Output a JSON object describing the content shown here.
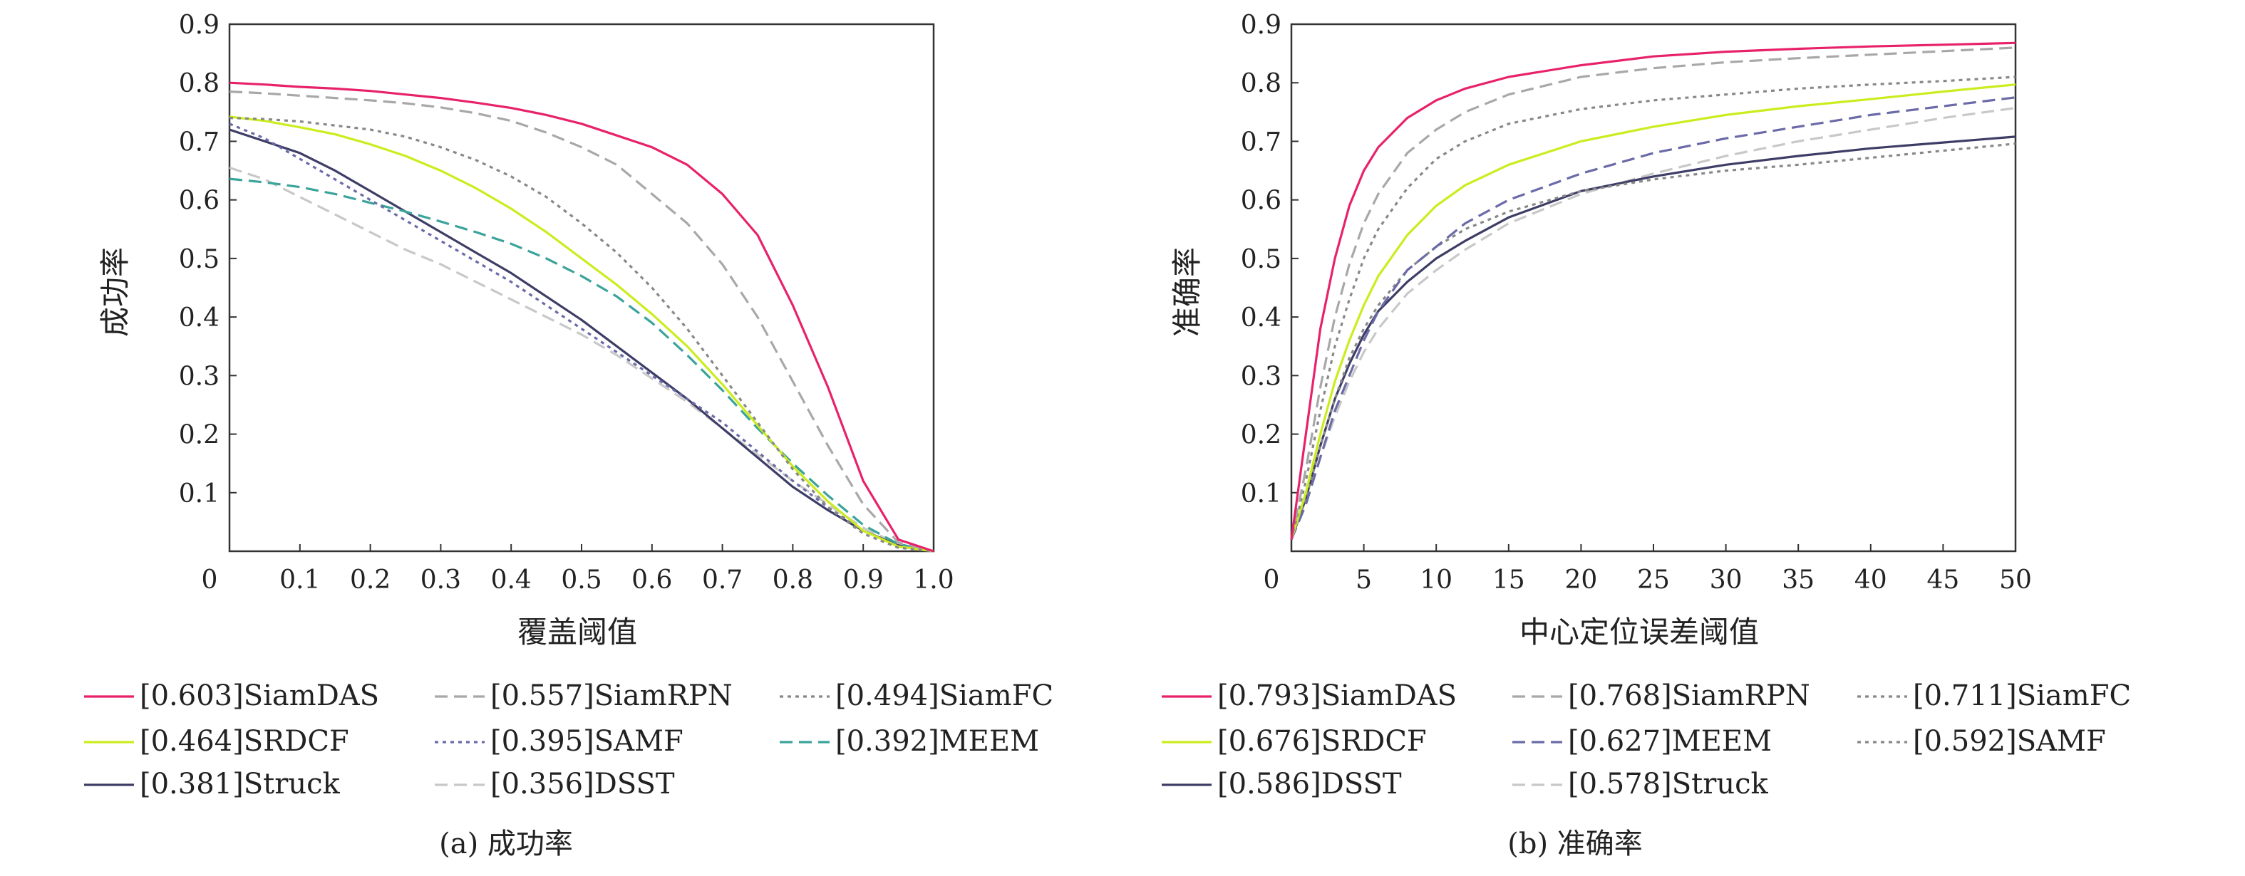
{
  "chart_data": [
    {
      "type": "line",
      "caption": "(a) 成功率",
      "xlabel": "覆盖阈值",
      "ylabel": "成功率",
      "xlim": [
        0,
        1
      ],
      "ylim": [
        0,
        0.9
      ],
      "xticks": [
        "0",
        "0.1",
        "0.2",
        "0.3",
        "0.4",
        "0.5",
        "0.6",
        "0.7",
        "0.8",
        "0.9",
        "1.0"
      ],
      "yticks": [
        "0.1",
        "0.2",
        "0.3",
        "0.4",
        "0.5",
        "0.6",
        "0.7",
        "0.8",
        "0.9"
      ],
      "x": [
        0,
        0.05,
        0.1,
        0.15,
        0.2,
        0.25,
        0.3,
        0.35,
        0.4,
        0.45,
        0.5,
        0.55,
        0.6,
        0.65,
        0.7,
        0.75,
        0.8,
        0.85,
        0.9,
        0.95,
        1.0
      ],
      "series": [
        {
          "name": "[0.603]SiamDAS",
          "color": "#e8226a",
          "dash": "solid",
          "values": [
            0.8,
            0.797,
            0.793,
            0.79,
            0.786,
            0.78,
            0.774,
            0.766,
            0.757,
            0.745,
            0.73,
            0.71,
            0.69,
            0.66,
            0.61,
            0.54,
            0.42,
            0.28,
            0.12,
            0.02,
            0.0
          ]
        },
        {
          "name": "[0.557]SiamRPN",
          "color": "#a8a8a8",
          "dash": "dash",
          "values": [
            0.785,
            0.782,
            0.778,
            0.774,
            0.77,
            0.765,
            0.758,
            0.748,
            0.735,
            0.715,
            0.69,
            0.66,
            0.61,
            0.56,
            0.49,
            0.4,
            0.29,
            0.18,
            0.08,
            0.015,
            0.0
          ]
        },
        {
          "name": "[0.494]SiamFC",
          "color": "#888888",
          "dash": "dot",
          "values": [
            0.74,
            0.738,
            0.734,
            0.727,
            0.72,
            0.708,
            0.69,
            0.668,
            0.64,
            0.605,
            0.56,
            0.51,
            0.45,
            0.38,
            0.3,
            0.22,
            0.14,
            0.075,
            0.03,
            0.006,
            0.0
          ]
        },
        {
          "name": "[0.464]SRDCF",
          "color": "#ccec1e",
          "dash": "solid",
          "values": [
            0.742,
            0.735,
            0.724,
            0.712,
            0.695,
            0.675,
            0.65,
            0.62,
            0.585,
            0.545,
            0.5,
            0.455,
            0.405,
            0.35,
            0.285,
            0.215,
            0.145,
            0.085,
            0.035,
            0.008,
            0.0
          ]
        },
        {
          "name": "[0.395]SAMF",
          "color": "#6a6aa8",
          "dash": "dot",
          "values": [
            0.73,
            0.705,
            0.67,
            0.635,
            0.6,
            0.565,
            0.53,
            0.495,
            0.46,
            0.42,
            0.38,
            0.34,
            0.3,
            0.26,
            0.22,
            0.17,
            0.12,
            0.075,
            0.035,
            0.008,
            0.0
          ]
        },
        {
          "name": "[0.392]MEEM",
          "color": "#3aa39a",
          "dash": "dash",
          "values": [
            0.636,
            0.63,
            0.622,
            0.61,
            0.595,
            0.58,
            0.563,
            0.545,
            0.525,
            0.5,
            0.47,
            0.435,
            0.39,
            0.335,
            0.275,
            0.21,
            0.15,
            0.095,
            0.045,
            0.012,
            0.0
          ]
        },
        {
          "name": "[0.381]Struck",
          "color": "#3d3d66",
          "dash": "solid",
          "values": [
            0.72,
            0.7,
            0.68,
            0.65,
            0.615,
            0.58,
            0.545,
            0.51,
            0.475,
            0.435,
            0.395,
            0.35,
            0.305,
            0.26,
            0.21,
            0.16,
            0.11,
            0.07,
            0.035,
            0.01,
            0.0
          ]
        },
        {
          "name": "[0.356]DSST",
          "color": "#c8c8c8",
          "dash": "dash",
          "values": [
            0.655,
            0.635,
            0.605,
            0.575,
            0.545,
            0.515,
            0.49,
            0.46,
            0.43,
            0.4,
            0.37,
            0.335,
            0.295,
            0.255,
            0.21,
            0.165,
            0.12,
            0.08,
            0.04,
            0.012,
            0.0
          ]
        }
      ]
    },
    {
      "type": "line",
      "caption": "(b) 准确率",
      "xlabel": "中心定位误差阈值",
      "ylabel": "准确率",
      "xlim": [
        0,
        50
      ],
      "ylim": [
        0,
        0.9
      ],
      "xticks": [
        "0",
        "5",
        "10",
        "15",
        "20",
        "25",
        "30",
        "35",
        "40",
        "45",
        "50"
      ],
      "yticks": [
        "0.1",
        "0.2",
        "0.3",
        "0.4",
        "0.5",
        "0.6",
        "0.7",
        "0.8",
        "0.9"
      ],
      "x": [
        0,
        1,
        2,
        3,
        4,
        5,
        6,
        8,
        10,
        12,
        15,
        20,
        25,
        30,
        35,
        40,
        45,
        50
      ],
      "series": [
        {
          "name": "[0.793]SiamDAS",
          "color": "#e8226a",
          "dash": "solid",
          "values": [
            0.02,
            0.2,
            0.38,
            0.5,
            0.59,
            0.65,
            0.69,
            0.74,
            0.77,
            0.79,
            0.81,
            0.83,
            0.845,
            0.853,
            0.858,
            0.862,
            0.865,
            0.868
          ]
        },
        {
          "name": "[0.768]SiamRPN",
          "color": "#a8a8a8",
          "dash": "dash",
          "values": [
            0.02,
            0.14,
            0.28,
            0.4,
            0.49,
            0.56,
            0.61,
            0.68,
            0.72,
            0.75,
            0.78,
            0.81,
            0.825,
            0.835,
            0.842,
            0.848,
            0.854,
            0.86
          ]
        },
        {
          "name": "[0.711]SiamFC",
          "color": "#888888",
          "dash": "dot",
          "values": [
            0.02,
            0.12,
            0.24,
            0.35,
            0.43,
            0.5,
            0.55,
            0.62,
            0.67,
            0.7,
            0.73,
            0.755,
            0.77,
            0.78,
            0.79,
            0.797,
            0.803,
            0.81
          ]
        },
        {
          "name": "[0.676]SRDCF",
          "color": "#ccec1e",
          "dash": "solid",
          "values": [
            0.02,
            0.1,
            0.2,
            0.29,
            0.36,
            0.42,
            0.47,
            0.54,
            0.59,
            0.625,
            0.66,
            0.7,
            0.725,
            0.745,
            0.76,
            0.772,
            0.785,
            0.797
          ]
        },
        {
          "name": "[0.627]MEEM",
          "color": "#6a6aa8",
          "dash": "dash",
          "values": [
            0.02,
            0.08,
            0.16,
            0.24,
            0.3,
            0.36,
            0.41,
            0.48,
            0.52,
            0.56,
            0.6,
            0.645,
            0.68,
            0.705,
            0.725,
            0.745,
            0.76,
            0.775
          ]
        },
        {
          "name": "[0.592]SAMF",
          "color": "#888888",
          "dash": "dot",
          "values": [
            0.02,
            0.09,
            0.18,
            0.26,
            0.33,
            0.38,
            0.42,
            0.48,
            0.52,
            0.55,
            0.58,
            0.615,
            0.635,
            0.65,
            0.66,
            0.672,
            0.684,
            0.696
          ]
        },
        {
          "name": "[0.586]DSST",
          "color": "#3d3d66",
          "dash": "solid",
          "values": [
            0.02,
            0.09,
            0.18,
            0.26,
            0.32,
            0.37,
            0.41,
            0.46,
            0.5,
            0.53,
            0.57,
            0.615,
            0.64,
            0.66,
            0.675,
            0.688,
            0.698,
            0.708
          ]
        },
        {
          "name": "[0.578]Struck",
          "color": "#c8c8c8",
          "dash": "dash",
          "values": [
            0.02,
            0.08,
            0.16,
            0.23,
            0.29,
            0.34,
            0.38,
            0.44,
            0.48,
            0.515,
            0.56,
            0.61,
            0.645,
            0.675,
            0.7,
            0.72,
            0.74,
            0.757
          ]
        }
      ]
    }
  ]
}
